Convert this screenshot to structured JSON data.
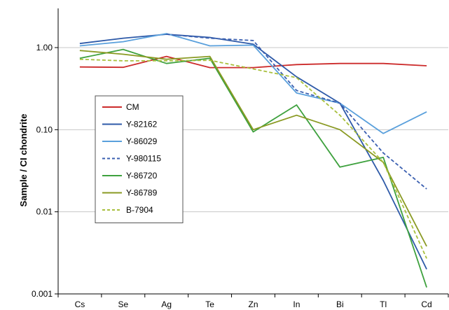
{
  "chart_data": {
    "type": "line",
    "y_scale": "log",
    "ylim": [
      0.001,
      3.0
    ],
    "ylabel": "Sample / CI chondrite",
    "xlabel": "",
    "y_ticks": [
      "0.001",
      "0.01",
      "0.10",
      "1.00"
    ],
    "grid": "horizontal",
    "legend_position": "left",
    "categories": [
      "Cs",
      "Se",
      "Ag",
      "Te",
      "Zn",
      "In",
      "Bi",
      "Tl",
      "Cd"
    ],
    "series": [
      {
        "name": "CM",
        "color": "#cc2b2b",
        "dash": "solid",
        "values": [
          0.58,
          0.575,
          0.78,
          0.57,
          0.57,
          0.62,
          0.64,
          0.64,
          0.6
        ]
      },
      {
        "name": "Y-82162",
        "color": "#2e5aa8",
        "dash": "solid",
        "values": [
          1.12,
          1.3,
          1.45,
          1.33,
          1.1,
          0.44,
          0.21,
          0.024,
          0.002
        ]
      },
      {
        "name": "Y-86029",
        "color": "#5aa0dc",
        "dash": "solid",
        "values": [
          1.05,
          1.18,
          1.48,
          1.05,
          1.07,
          0.28,
          0.21,
          0.09,
          0.165
        ]
      },
      {
        "name": "Y-980115",
        "color": "#3a5fb0",
        "dash": "dashed",
        "values": [
          null,
          null,
          1.45,
          1.3,
          1.22,
          0.3,
          0.21,
          0.052,
          0.019
        ]
      },
      {
        "name": "Y-86720",
        "color": "#3ea13e",
        "dash": "solid",
        "values": [
          0.74,
          0.95,
          0.64,
          0.74,
          0.094,
          0.2,
          0.035,
          0.046,
          0.0012
        ]
      },
      {
        "name": "Y-86789",
        "color": "#8a9a23",
        "dash": "solid",
        "values": [
          0.92,
          0.83,
          0.72,
          0.78,
          0.1,
          0.15,
          0.1,
          0.04,
          0.0038
        ]
      },
      {
        "name": "B-7904",
        "color": "#a8bf3c",
        "dash": "dashed",
        "values": [
          0.72,
          0.69,
          0.69,
          0.7,
          0.55,
          0.43,
          0.15,
          0.04,
          0.0027
        ]
      }
    ]
  }
}
